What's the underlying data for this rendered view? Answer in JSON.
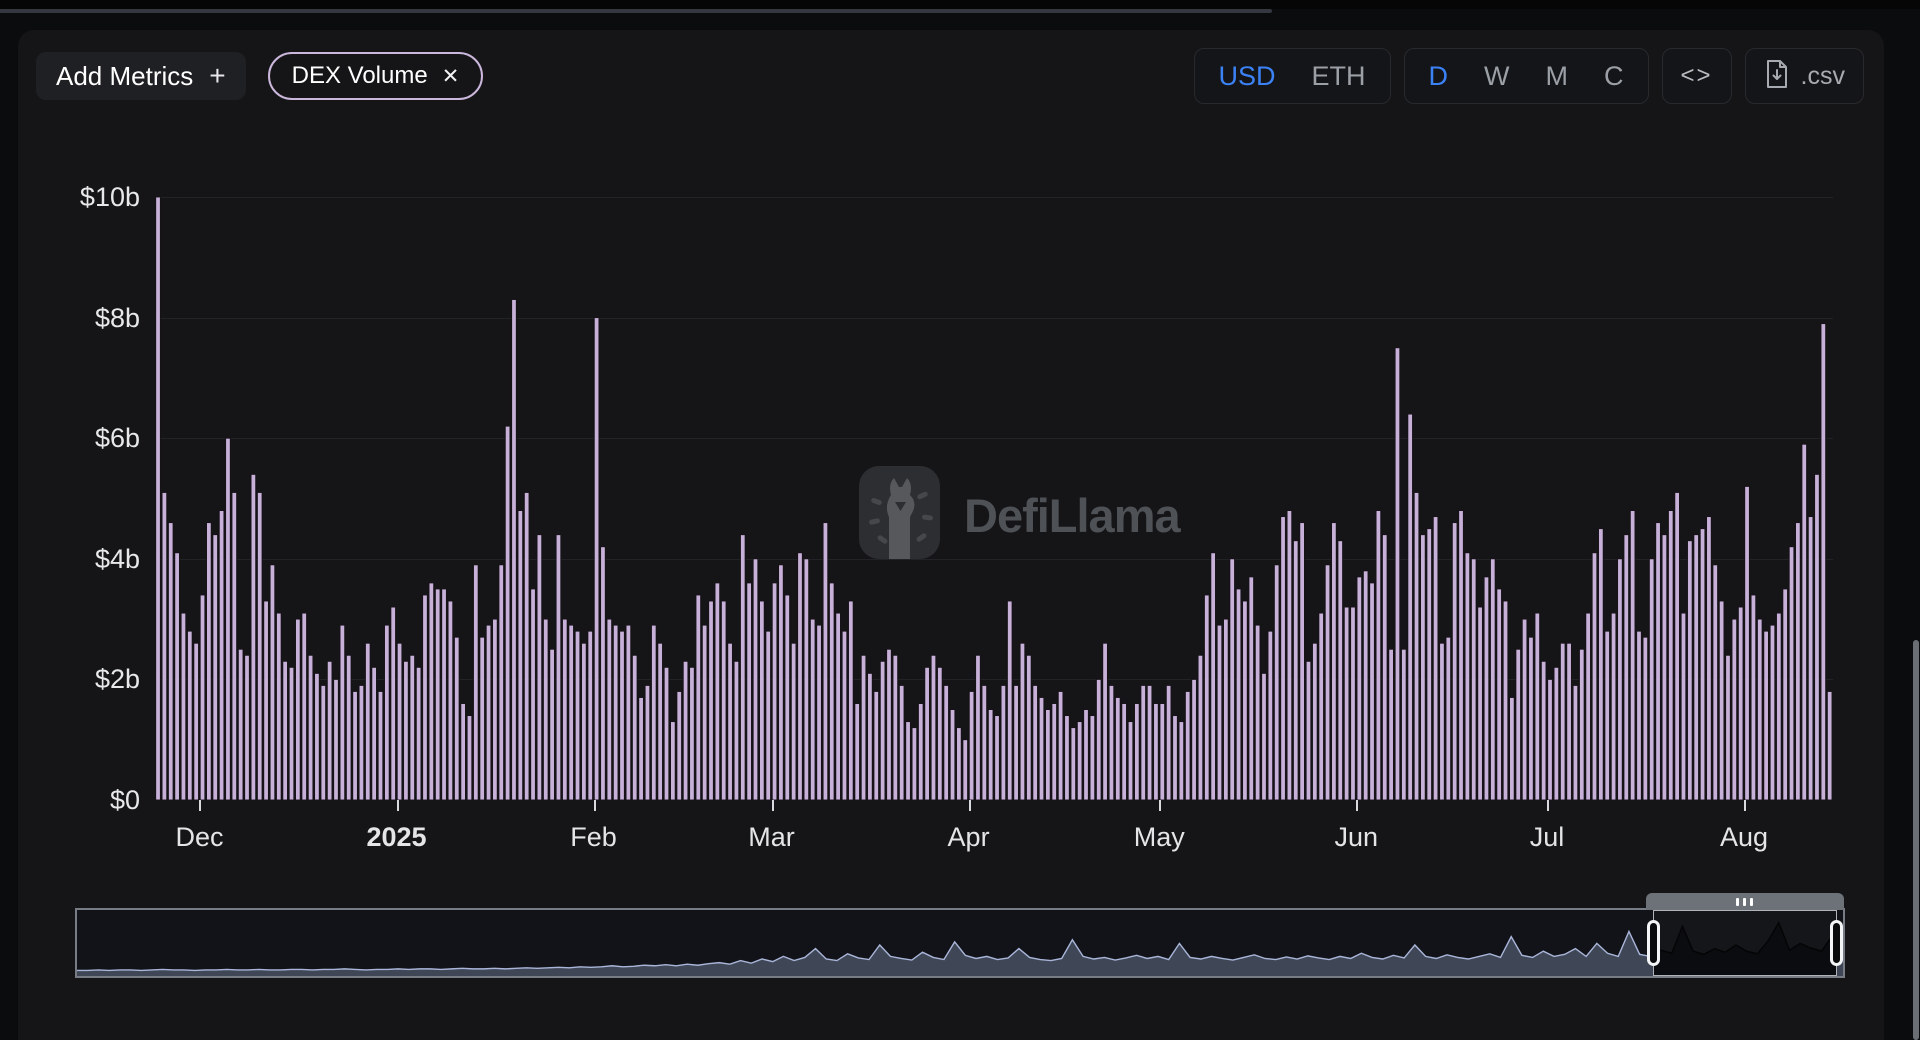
{
  "header": {
    "add_metrics_label": "Add Metrics",
    "add_metrics_plus": "+",
    "metric_pill": {
      "label": "DEX Volume",
      "close": "✕"
    },
    "currency_toggle": {
      "options": [
        "USD",
        "ETH"
      ],
      "active": "USD"
    },
    "interval_toggle": {
      "options": [
        "D",
        "W",
        "M",
        "C"
      ],
      "active": "D"
    },
    "embed_label": "<>",
    "csv_label": ".csv"
  },
  "watermark": {
    "text": "DefiLlama"
  },
  "chart_data": {
    "type": "bar",
    "title": "DEX Volume",
    "currency": "USD",
    "ylabel": "",
    "xlabel": "",
    "ylim": [
      0,
      10
    ],
    "grid": "horizontal",
    "y_ticks": {
      "labels": [
        "$10b",
        "$8b",
        "$6b",
        "$4b",
        "$2b",
        "$0"
      ],
      "values": [
        10,
        8,
        6,
        4,
        2,
        0
      ]
    },
    "x_ticks": [
      {
        "label": "Dec",
        "index": 7,
        "bold": false
      },
      {
        "label": "2025",
        "index": 38,
        "bold": true
      },
      {
        "label": "Feb",
        "index": 69,
        "bold": false
      },
      {
        "label": "Mar",
        "index": 97,
        "bold": false
      },
      {
        "label": "Apr",
        "index": 128,
        "bold": false
      },
      {
        "label": "May",
        "index": 158,
        "bold": false
      },
      {
        "label": "Jun",
        "index": 189,
        "bold": false
      },
      {
        "label": "Jul",
        "index": 219,
        "bold": false
      },
      {
        "label": "Aug",
        "index": 250,
        "bold": false
      }
    ],
    "series": {
      "name": "DEX Volume",
      "unit": "$b USD",
      "frequency": "daily",
      "start_date": "2024-11-24",
      "values": [
        10.0,
        5.1,
        4.6,
        4.1,
        3.1,
        2.8,
        2.6,
        3.4,
        4.6,
        4.4,
        4.8,
        6.0,
        5.1,
        2.5,
        2.4,
        5.4,
        5.1,
        3.3,
        3.9,
        3.1,
        2.3,
        2.2,
        3.0,
        3.1,
        2.4,
        2.1,
        1.9,
        2.3,
        2.0,
        2.9,
        2.4,
        1.8,
        1.9,
        2.6,
        2.2,
        1.8,
        2.9,
        3.2,
        2.6,
        2.3,
        2.4,
        2.2,
        3.4,
        3.6,
        3.5,
        3.5,
        3.3,
        2.7,
        1.6,
        1.4,
        3.9,
        2.7,
        2.9,
        3.0,
        3.9,
        6.2,
        8.3,
        4.8,
        5.1,
        3.5,
        4.4,
        3.0,
        2.5,
        4.4,
        3.0,
        2.9,
        2.8,
        2.6,
        2.8,
        8.0,
        4.2,
        3.0,
        2.9,
        2.8,
        2.9,
        2.4,
        1.7,
        1.9,
        2.9,
        2.6,
        2.2,
        1.3,
        1.8,
        2.3,
        2.2,
        3.4,
        2.9,
        3.3,
        3.6,
        3.3,
        2.6,
        2.3,
        4.4,
        3.6,
        4.0,
        3.3,
        2.8,
        3.6,
        3.9,
        3.4,
        2.6,
        4.1,
        4.0,
        3.0,
        2.9,
        4.6,
        3.6,
        3.1,
        2.8,
        3.3,
        1.6,
        2.4,
        2.1,
        1.8,
        2.3,
        2.5,
        2.4,
        1.9,
        1.3,
        1.2,
        1.6,
        2.2,
        2.4,
        2.2,
        1.9,
        1.5,
        1.2,
        1.0,
        1.8,
        2.4,
        1.9,
        1.5,
        1.4,
        1.9,
        3.3,
        1.9,
        2.6,
        2.4,
        1.9,
        1.7,
        1.5,
        1.6,
        1.8,
        1.4,
        1.2,
        1.3,
        1.5,
        1.4,
        2.0,
        2.6,
        1.9,
        1.7,
        1.6,
        1.3,
        1.6,
        1.9,
        1.9,
        1.6,
        1.6,
        1.9,
        1.4,
        1.3,
        1.8,
        2.0,
        2.4,
        3.4,
        4.1,
        2.9,
        3.0,
        4.0,
        3.5,
        3.3,
        3.7,
        2.9,
        2.1,
        2.8,
        3.9,
        4.7,
        4.8,
        4.3,
        4.6,
        2.3,
        2.6,
        3.1,
        3.9,
        4.6,
        4.3,
        3.2,
        3.2,
        3.7,
        3.8,
        3.6,
        4.8,
        4.4,
        2.5,
        7.5,
        2.5,
        6.4,
        5.1,
        4.4,
        4.5,
        4.7,
        2.6,
        2.7,
        4.6,
        4.8,
        4.1,
        4.0,
        3.2,
        3.7,
        4.0,
        3.5,
        3.3,
        1.7,
        2.5,
        3.0,
        2.7,
        3.1,
        2.3,
        2.0,
        2.2,
        2.6,
        2.6,
        1.9,
        2.5,
        3.1,
        4.1,
        4.5,
        2.8,
        3.1,
        4.0,
        4.4,
        4.8,
        2.8,
        2.7,
        4.0,
        4.6,
        4.4,
        4.8,
        5.1,
        3.1,
        4.3,
        4.4,
        4.5,
        4.7,
        3.9,
        3.3,
        2.4,
        3.0,
        3.2,
        5.2,
        3.4,
        3.0,
        2.8,
        2.9,
        3.1,
        3.5,
        4.2,
        4.6,
        5.9,
        4.7,
        5.4,
        7.9,
        1.8
      ]
    }
  },
  "navigator": {
    "selection": {
      "start": 0.8925,
      "end": 0.9965
    },
    "sparkline": [
      0.03,
      0.03,
      0.04,
      0.03,
      0.04,
      0.04,
      0.03,
      0.04,
      0.05,
      0.04,
      0.04,
      0.03,
      0.04,
      0.04,
      0.05,
      0.04,
      0.04,
      0.05,
      0.04,
      0.04,
      0.05,
      0.05,
      0.04,
      0.05,
      0.05,
      0.06,
      0.05,
      0.04,
      0.05,
      0.05,
      0.06,
      0.05,
      0.06,
      0.06,
      0.05,
      0.06,
      0.07,
      0.06,
      0.06,
      0.07,
      0.06,
      0.07,
      0.08,
      0.07,
      0.08,
      0.09,
      0.08,
      0.1,
      0.09,
      0.1,
      0.12,
      0.1,
      0.11,
      0.13,
      0.12,
      0.14,
      0.12,
      0.15,
      0.13,
      0.16,
      0.18,
      0.15,
      0.22,
      0.17,
      0.25,
      0.2,
      0.3,
      0.22,
      0.28,
      0.45,
      0.25,
      0.22,
      0.35,
      0.27,
      0.24,
      0.52,
      0.3,
      0.26,
      0.23,
      0.38,
      0.28,
      0.24,
      0.58,
      0.32,
      0.26,
      0.3,
      0.24,
      0.27,
      0.45,
      0.28,
      0.24,
      0.22,
      0.26,
      0.62,
      0.3,
      0.25,
      0.28,
      0.23,
      0.27,
      0.32,
      0.26,
      0.3,
      0.24,
      0.55,
      0.28,
      0.25,
      0.3,
      0.26,
      0.23,
      0.28,
      0.33,
      0.26,
      0.24,
      0.29,
      0.25,
      0.31,
      0.27,
      0.24,
      0.3,
      0.26,
      0.36,
      0.28,
      0.25,
      0.32,
      0.27,
      0.52,
      0.3,
      0.26,
      0.33,
      0.28,
      0.25,
      0.3,
      0.35,
      0.28,
      0.68,
      0.32,
      0.28,
      0.4,
      0.3,
      0.34,
      0.45,
      0.3,
      0.55,
      0.36,
      0.3,
      0.78,
      0.34,
      0.3,
      0.42,
      0.36,
      0.88,
      0.4,
      0.34,
      0.45,
      0.38,
      0.52,
      0.4,
      0.35,
      0.6,
      0.95,
      0.42,
      0.55,
      0.46,
      0.4,
      0.7,
      0.5
    ]
  },
  "colors": {
    "bar_fill": "#c7b1d8",
    "bar_stroke": "#171219",
    "accent": "#3b82f6",
    "pill_border": "#cbb7dc",
    "grid": "#222327",
    "axis_text": "#e7e8ea",
    "muted_text": "#9ba0a7",
    "nav_line": "#a9b6d9",
    "nav_fill": "#3f4656",
    "nav_sel_bg": "#15161a",
    "nav_sel_line": "#040405",
    "nav_sel_fill": "#0b0c0f"
  }
}
